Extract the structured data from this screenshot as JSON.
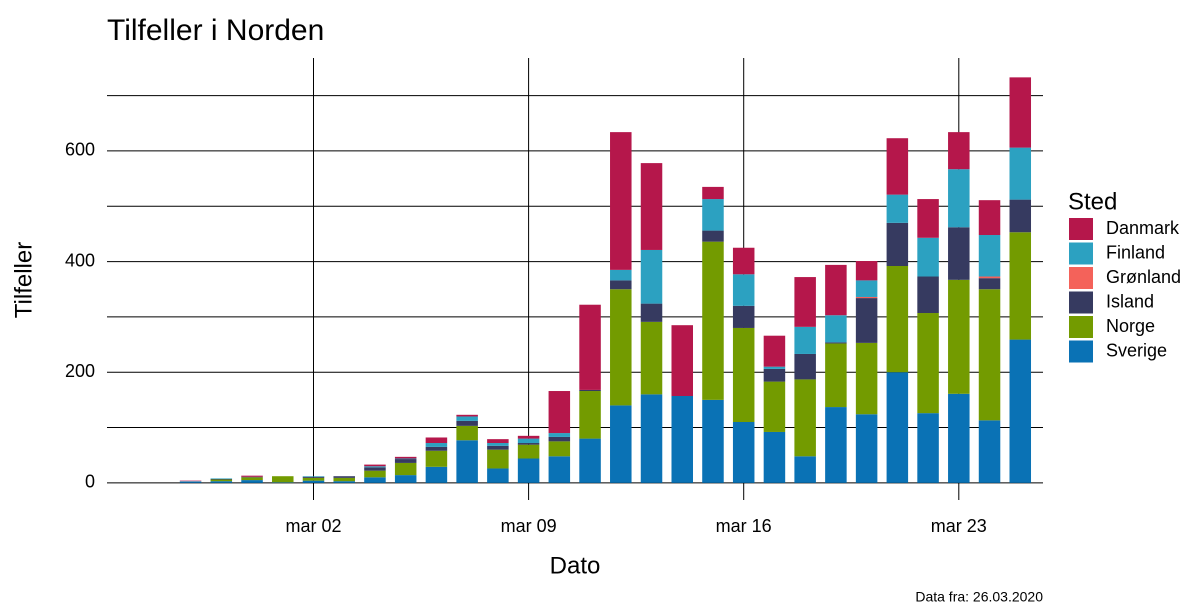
{
  "chart_data": {
    "type": "stacked-bar",
    "title": "Tilfeller i Norden",
    "x_label": "Dato",
    "y_label": "Tilfeller",
    "legend_title": "Sted",
    "caption": "Data fra: 26.03.2020",
    "x": [
      "feb 27",
      "feb 28",
      "feb 29",
      "mar 01",
      "mar 02",
      "mar 03",
      "mar 04",
      "mar 05",
      "mar 06",
      "mar 07",
      "mar 08",
      "mar 09",
      "mar 10",
      "mar 11",
      "mar 12",
      "mar 13",
      "mar 14",
      "mar 15",
      "mar 16",
      "mar 17",
      "mar 18",
      "mar 19",
      "mar 20",
      "mar 21",
      "mar 22",
      "mar 23",
      "mar 24",
      "mar 25"
    ],
    "xticks": [
      "mar 02",
      "mar 09",
      "mar 16",
      "mar 23"
    ],
    "ylim": [
      -31,
      768
    ],
    "yticks": [
      0,
      200,
      400,
      600
    ],
    "yminor": [
      100,
      300,
      500,
      700
    ],
    "grid": true,
    "legend_position": "right",
    "series": [
      {
        "name": "Danmark",
        "color": "#b5174b",
        "values": [
          1,
          0,
          2,
          0,
          0,
          0,
          3,
          3,
          10,
          3,
          7,
          5,
          76,
          154,
          249,
          157,
          128,
          22,
          48,
          56,
          90,
          91,
          35,
          102,
          70,
          67,
          63,
          127
        ]
      },
      {
        "name": "Finland",
        "color": "#2ca1c1",
        "values": [
          1,
          1,
          0,
          0,
          1,
          0,
          2,
          1,
          7,
          8,
          5,
          8,
          7,
          0,
          19,
          97,
          0,
          57,
          57,
          4,
          49,
          49,
          30,
          51,
          70,
          105,
          75,
          94
        ]
      },
      {
        "name": "Grønland",
        "color": "#f4625a",
        "values": [
          0,
          0,
          0,
          0,
          0,
          0,
          0,
          0,
          0,
          0,
          0,
          0,
          0,
          0,
          0,
          0,
          0,
          0,
          0,
          0,
          0,
          0,
          2,
          0,
          0,
          0,
          3,
          0
        ]
      },
      {
        "name": "Island",
        "color": "#363a60",
        "values": [
          0,
          1,
          1,
          0,
          2,
          3,
          6,
          7,
          7,
          9,
          7,
          3,
          8,
          2,
          16,
          33,
          0,
          20,
          40,
          23,
          46,
          2,
          81,
          78,
          66,
          95,
          20,
          59
        ]
      },
      {
        "name": "Norge",
        "color": "#739b00",
        "values": [
          0,
          3,
          5,
          11,
          5,
          6,
          12,
          22,
          29,
          26,
          34,
          25,
          27,
          86,
          210,
          131,
          0,
          286,
          170,
          91,
          139,
          115,
          129,
          192,
          181,
          206,
          237,
          194
        ]
      },
      {
        "name": "Sverige",
        "color": "#0a72b5",
        "values": [
          2,
          3,
          5,
          1,
          4,
          3,
          10,
          14,
          29,
          77,
          26,
          44,
          48,
          80,
          140,
          160,
          157,
          150,
          110,
          92,
          48,
          137,
          124,
          200,
          126,
          161,
          113,
          259
        ]
      }
    ]
  }
}
